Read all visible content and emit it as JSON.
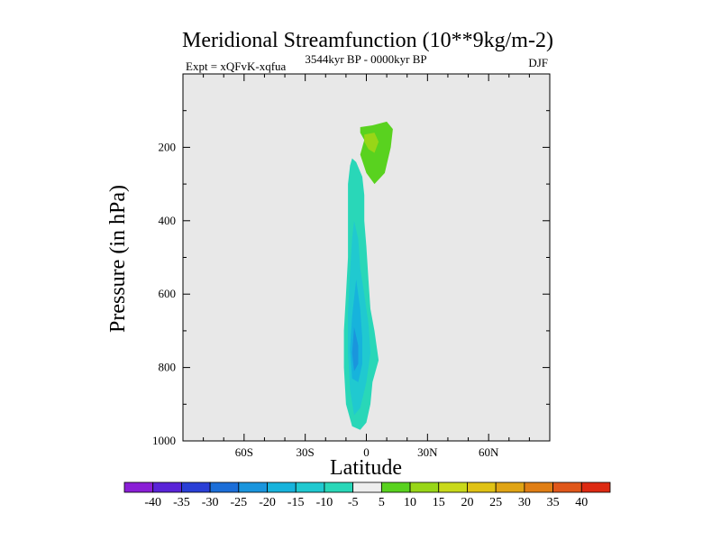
{
  "chart_data": {
    "type": "contour",
    "title": "Meridional Streamfunction (10**9kg/m-2)",
    "subtitle_left": "Expt = xQFvK-xqfua",
    "subtitle_center": "3544kyr BP - 0000kyr BP",
    "subtitle_right": "DJF",
    "xlabel": "Latitude",
    "ylabel": "Pressure (in hPa)",
    "xlim": [
      -90,
      90
    ],
    "ylim": [
      1000,
      0
    ],
    "x_ticks": [
      {
        "value": -60,
        "label": "60S"
      },
      {
        "value": -30,
        "label": "30S"
      },
      {
        "value": 0,
        "label": "0"
      },
      {
        "value": 30,
        "label": "30N"
      },
      {
        "value": 60,
        "label": "60N"
      }
    ],
    "y_ticks": [
      {
        "value": 200,
        "label": "200"
      },
      {
        "value": 400,
        "label": "400"
      },
      {
        "value": 600,
        "label": "600"
      },
      {
        "value": 800,
        "label": "800"
      },
      {
        "value": 1000,
        "label": "1000"
      }
    ],
    "background_color": "#e8e8e8",
    "colorbar": {
      "labels": [
        "-40",
        "-35",
        "-30",
        "-25",
        "-20",
        "-15",
        "-10",
        "-5",
        "5",
        "10",
        "15",
        "20",
        "25",
        "30",
        "35",
        "40"
      ],
      "colors": [
        "#8a1fd6",
        "#5a24d8",
        "#2a3fd6",
        "#1c6ed8",
        "#1a95dd",
        "#17b3dc",
        "#20c9d0",
        "#29d7b8",
        "#eeeeee",
        "#59d21f",
        "#98d617",
        "#c9d91a",
        "#e0c214",
        "#e0a414",
        "#e07e14",
        "#e0571a",
        "#dd2a12"
      ]
    },
    "contours": [
      {
        "name": "contour-neg-5-region",
        "level": "-5",
        "color": "#29d7b8",
        "points": [
          [
            -7,
            230
          ],
          [
            -5,
            240
          ],
          [
            -2,
            280
          ],
          [
            -1,
            330
          ],
          [
            -1,
            400
          ],
          [
            0,
            470
          ],
          [
            1,
            560
          ],
          [
            2,
            640
          ],
          [
            4,
            700
          ],
          [
            6,
            780
          ],
          [
            3,
            840
          ],
          [
            2,
            900
          ],
          [
            0,
            950
          ],
          [
            -3,
            970
          ],
          [
            -7,
            960
          ],
          [
            -10,
            900
          ],
          [
            -11,
            800
          ],
          [
            -11,
            700
          ],
          [
            -10,
            600
          ],
          [
            -9,
            500
          ],
          [
            -9,
            400
          ],
          [
            -9,
            300
          ],
          [
            -8,
            250
          ]
        ]
      },
      {
        "name": "contour-neg-10-region",
        "level": "-10",
        "color": "#20c9d0",
        "points": [
          [
            -6,
            400
          ],
          [
            -4,
            450
          ],
          [
            -3,
            530
          ],
          [
            -1,
            600
          ],
          [
            1,
            680
          ],
          [
            2,
            760
          ],
          [
            0,
            840
          ],
          [
            -3,
            910
          ],
          [
            -6,
            930
          ],
          [
            -8,
            860
          ],
          [
            -9,
            760
          ],
          [
            -9,
            650
          ],
          [
            -8,
            540
          ],
          [
            -7,
            450
          ]
        ]
      },
      {
        "name": "contour-neg-15-region",
        "level": "-15",
        "color": "#17b3dc",
        "points": [
          [
            -5,
            560
          ],
          [
            -3,
            640
          ],
          [
            -2,
            720
          ],
          [
            -2,
            790
          ],
          [
            -4,
            840
          ],
          [
            -7,
            830
          ],
          [
            -8,
            750
          ],
          [
            -7,
            660
          ]
        ]
      },
      {
        "name": "contour-neg-20-region",
        "level": "-20",
        "color": "#1a95dd",
        "points": [
          [
            -6,
            690
          ],
          [
            -4,
            740
          ],
          [
            -4,
            790
          ],
          [
            -6,
            810
          ],
          [
            -7,
            760
          ]
        ]
      },
      {
        "name": "contour-pos-5-region",
        "level": "5",
        "color": "#59d21f",
        "points": [
          [
            -3,
            145
          ],
          [
            3,
            140
          ],
          [
            10,
            130
          ],
          [
            13,
            150
          ],
          [
            12,
            200
          ],
          [
            9,
            270
          ],
          [
            4,
            300
          ],
          [
            0,
            270
          ],
          [
            -3,
            220
          ],
          [
            -1,
            180
          ],
          [
            -3,
            160
          ]
        ]
      },
      {
        "name": "contour-pos-10-region",
        "level": "10",
        "color": "#98d617",
        "points": [
          [
            -1,
            165
          ],
          [
            4,
            160
          ],
          [
            6,
            185
          ],
          [
            4,
            215
          ],
          [
            1,
            205
          ],
          [
            -1,
            185
          ]
        ]
      }
    ]
  }
}
